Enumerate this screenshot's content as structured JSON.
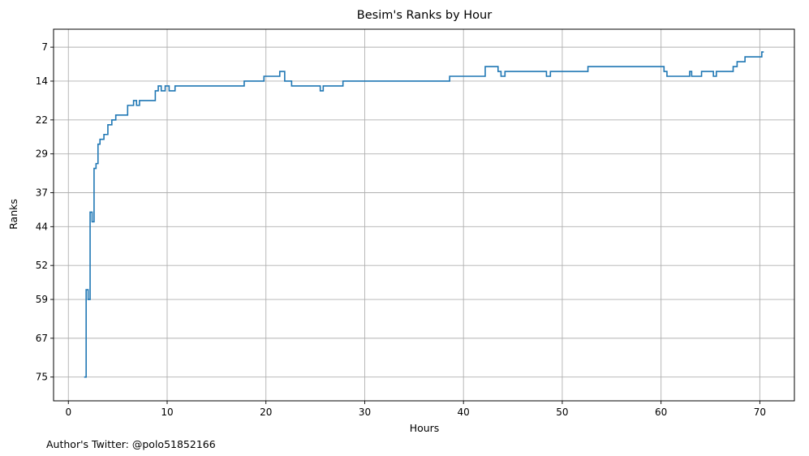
{
  "chart_data": {
    "type": "line",
    "step": true,
    "title": "Besim's Ranks by Hour",
    "xlabel": "Hours",
    "ylabel": "Ranks",
    "xlim": [
      -1.5,
      73.5
    ],
    "ylim": [
      79.9,
      3.3
    ],
    "y_inverted": true,
    "grid": true,
    "x_ticks": [
      0,
      10,
      20,
      30,
      40,
      50,
      60,
      70
    ],
    "x_tick_labels": [
      "0",
      "10",
      "20",
      "30",
      "40",
      "50",
      "60",
      "70"
    ],
    "y_ticks": [
      7,
      14,
      22,
      29,
      37,
      44,
      52,
      59,
      67,
      75
    ],
    "y_tick_labels": [
      "7",
      "14",
      "22",
      "29",
      "37",
      "44",
      "52",
      "59",
      "67",
      "75"
    ],
    "line_color": "#1f77b4",
    "series": [
      {
        "x": [
          1.6,
          1.8,
          2.0,
          2.2,
          2.4,
          2.6,
          2.8,
          3.0,
          3.2,
          3.4,
          3.6,
          4.0,
          4.4,
          4.8,
          6.0,
          6.6,
          6.9,
          7.2,
          8.8,
          9.1,
          9.4,
          9.8,
          10.2,
          10.8,
          14.8,
          17.8,
          19.8,
          21.4,
          21.9,
          22.6,
          25.5,
          25.8,
          27.8,
          38.6,
          42.2,
          43.5,
          43.8,
          44.2,
          48.4,
          48.8,
          52.6,
          58.4,
          60.3,
          60.6,
          62.9,
          63.1,
          64.1,
          65.3,
          65.6,
          67.3,
          67.7,
          68.5,
          70.2,
          70.4
        ],
        "y": [
          75,
          57,
          59,
          41,
          43,
          32,
          31,
          27,
          26,
          26,
          25,
          23,
          22,
          21,
          19,
          18,
          19,
          18,
          16,
          15,
          16,
          15,
          16,
          15,
          15,
          14,
          13,
          12,
          14,
          15,
          16,
          15,
          14,
          13,
          11,
          12,
          13,
          12,
          13,
          12,
          11,
          11,
          12,
          13,
          12,
          13,
          12,
          13,
          12,
          11,
          10,
          9,
          8,
          8
        ]
      }
    ]
  },
  "footer": {
    "author_credit": "Author's Twitter: @polo51852166"
  }
}
